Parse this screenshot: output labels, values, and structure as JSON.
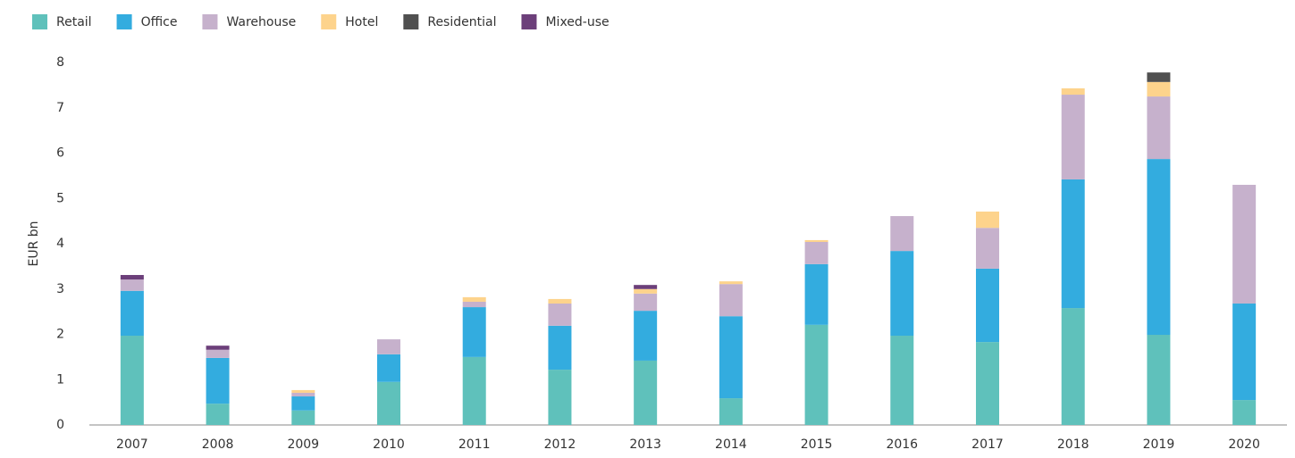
{
  "chart_data": {
    "type": "stacked_bar",
    "y_label": "EUR bn",
    "categories": [
      "2007",
      "2008",
      "2009",
      "2010",
      "2011",
      "2012",
      "2013",
      "2014",
      "2015",
      "2016",
      "2017",
      "2018",
      "2019",
      "2020"
    ],
    "series": [
      {
        "name": "Retail",
        "color": "#5fc1bb",
        "values": [
          1.97,
          0.47,
          0.32,
          0.95,
          1.5,
          1.22,
          1.42,
          0.59,
          2.21,
          1.97,
          1.83,
          2.58,
          1.99,
          0.55
        ]
      },
      {
        "name": "Office",
        "color": "#33acdf",
        "values": [
          0.99,
          1.01,
          0.31,
          0.61,
          1.1,
          0.97,
          1.1,
          1.81,
          1.34,
          1.87,
          1.62,
          2.84,
          3.88,
          2.13
        ]
      },
      {
        "name": "Warehouse",
        "color": "#c6b1cc",
        "values": [
          0.25,
          0.18,
          0.08,
          0.33,
          0.12,
          0.49,
          0.38,
          0.71,
          0.49,
          0.77,
          0.9,
          1.87,
          1.38,
          2.62
        ]
      },
      {
        "name": "Hotel",
        "color": "#fdd38c",
        "values": [
          0,
          0,
          0.06,
          0,
          0.1,
          0.1,
          0.1,
          0.06,
          0.04,
          0,
          0.36,
          0.14,
          0.32,
          0
        ]
      },
      {
        "name": "Residential",
        "color": "#505050",
        "values": [
          0,
          0,
          0,
          0,
          0,
          0,
          0,
          0,
          0,
          0,
          0,
          0,
          0.21,
          0
        ]
      },
      {
        "name": "Mixed-use",
        "color": "#6c3f7a",
        "values": [
          0.1,
          0.09,
          0,
          0,
          0,
          0,
          0.09,
          0,
          0,
          0,
          0,
          0,
          0,
          0
        ]
      }
    ],
    "ylim": [
      0,
      8
    ],
    "yticks": [
      0,
      1,
      2,
      3,
      4,
      5,
      6,
      7,
      8
    ],
    "grid": false
  }
}
